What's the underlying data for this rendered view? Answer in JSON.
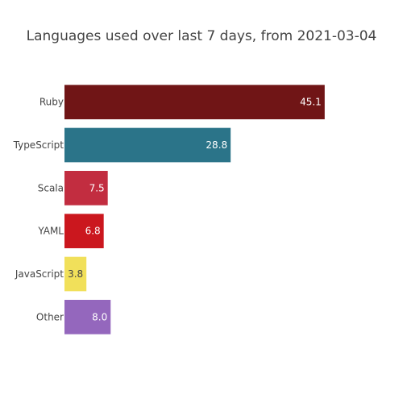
{
  "chart_data": {
    "type": "bar",
    "orientation": "horizontal",
    "title": "Languages used over last 7 days, from 2021-03-04",
    "xlabel": "",
    "ylabel": "",
    "grid": false,
    "xlim": [
      0,
      47.5
    ],
    "categories": [
      "Ruby",
      "TypeScript",
      "Scala",
      "YAML",
      "JavaScript",
      "Other"
    ],
    "values": [
      45.1,
      28.8,
      7.5,
      6.8,
      3.8,
      8.0
    ],
    "value_labels": [
      "45.1",
      "28.8",
      "7.5",
      "6.8",
      "3.8",
      "8.0"
    ],
    "colors": [
      "#701516",
      "#2b7489",
      "#c22d40",
      "#cb171e",
      "#f1e05a",
      "#9467bd"
    ],
    "label_colors": [
      "#ffffff",
      "#ffffff",
      "#ffffff",
      "#ffffff",
      "#444444",
      "#ffffff"
    ]
  }
}
